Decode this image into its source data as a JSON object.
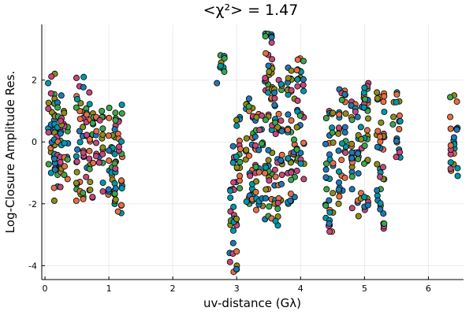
{
  "chart_data": {
    "type": "scatter",
    "title": "<χ²> = 1.47",
    "xlabel": "uv-distance (Gλ)",
    "ylabel": "Log-Closure Amplitude Res.",
    "xlim": [
      -0.05,
      6.55
    ],
    "ylim": [
      -4.45,
      3.8
    ],
    "xticks": [
      0,
      1,
      2,
      3,
      4,
      5,
      6
    ],
    "xtick_labels": [
      "0",
      "1",
      "2",
      "3",
      "4",
      "5",
      "6"
    ],
    "yticks": [
      -4,
      -2,
      0,
      2
    ],
    "ytick_labels": [
      "-4",
      "-2",
      "0",
      "2"
    ],
    "grid": true,
    "legend": "none",
    "marker_colors": [
      "#e26f46",
      "#3da44d",
      "#c3487c",
      "#0097a7",
      "#8c8c1e",
      "#1f78b4"
    ],
    "clusters": [
      {
        "x": 0.1,
        "ymin": -1.0,
        "ymax": 2.2
      },
      {
        "x": 0.2,
        "ymin": -1.9,
        "ymax": 1.5
      },
      {
        "x": 0.3,
        "ymin": -1.2,
        "ymax": 1.0
      },
      {
        "x": 0.55,
        "ymin": -1.9,
        "ymax": 2.1
      },
      {
        "x": 0.7,
        "ymin": -1.8,
        "ymax": 1.6
      },
      {
        "x": 0.85,
        "ymin": -1.6,
        "ymax": 1.0
      },
      {
        "x": 1.05,
        "ymin": -1.7,
        "ymax": 1.1
      },
      {
        "x": 1.15,
        "ymin": -2.3,
        "ymax": 1.2
      },
      {
        "x": 2.75,
        "ymin": 1.9,
        "ymax": 2.8
      },
      {
        "x": 2.95,
        "ymin": -4.2,
        "ymax": -1.3
      },
      {
        "x": 3.0,
        "ymin": -1.5,
        "ymax": 0.8
      },
      {
        "x": 3.2,
        "ymin": -2.0,
        "ymax": 1.4
      },
      {
        "x": 3.35,
        "ymin": -2.2,
        "ymax": 0.9
      },
      {
        "x": 3.5,
        "ymin": -2.5,
        "ymax": 3.5
      },
      {
        "x": 3.65,
        "ymin": -2.7,
        "ymax": 2.0
      },
      {
        "x": 3.85,
        "ymin": -2.0,
        "ymax": 2.4
      },
      {
        "x": 4.0,
        "ymin": -1.2,
        "ymax": 2.7
      },
      {
        "x": 4.45,
        "ymin": -2.9,
        "ymax": 1.0
      },
      {
        "x": 4.65,
        "ymin": -2.0,
        "ymax": 1.7
      },
      {
        "x": 4.85,
        "ymin": -2.4,
        "ymax": 1.3
      },
      {
        "x": 5.0,
        "ymin": -2.2,
        "ymax": 1.9
      },
      {
        "x": 5.25,
        "ymin": -2.8,
        "ymax": 1.6
      },
      {
        "x": 5.5,
        "ymin": -0.5,
        "ymax": 1.6
      },
      {
        "x": 6.4,
        "ymin": -1.1,
        "ymax": 1.5
      }
    ]
  }
}
